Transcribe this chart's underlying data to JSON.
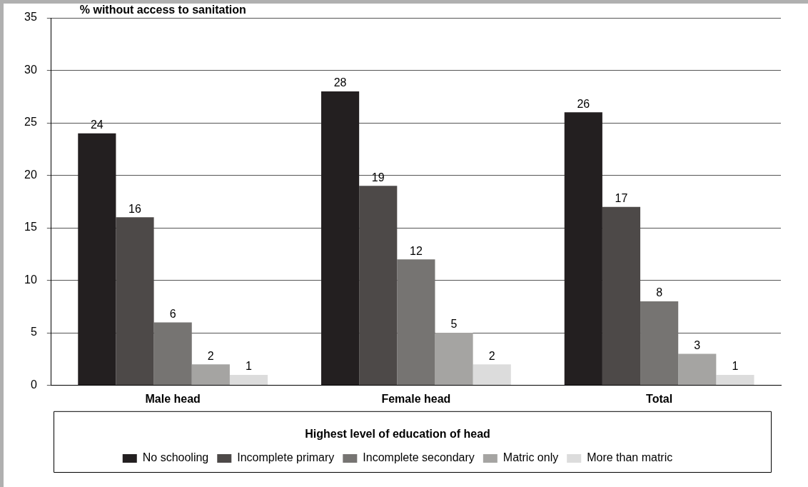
{
  "chart_data": {
    "type": "bar",
    "ylabel": "% without access to sanitation",
    "legend_title": "Highest level of education of head",
    "categories": [
      "Male head",
      "Female head",
      "Total"
    ],
    "series": [
      {
        "name": "No schooling",
        "color": "#231f20",
        "values": [
          24,
          28,
          26
        ]
      },
      {
        "name": "Incomplete primary",
        "color": "#4d4948",
        "values": [
          16,
          19,
          17
        ]
      },
      {
        "name": "Incomplete secondary",
        "color": "#767472",
        "values": [
          6,
          12,
          8
        ]
      },
      {
        "name": "Matric only",
        "color": "#a5a4a2",
        "values": [
          2,
          5,
          3
        ]
      },
      {
        "name": "More than matric",
        "color": "#dcdcdc",
        "values": [
          1,
          2,
          1
        ]
      }
    ],
    "ylim": [
      0,
      35
    ],
    "yticks": [
      0,
      5,
      10,
      15,
      20,
      25,
      30,
      35
    ],
    "grid": "y",
    "legend": "bottom",
    "data_labels": true
  }
}
